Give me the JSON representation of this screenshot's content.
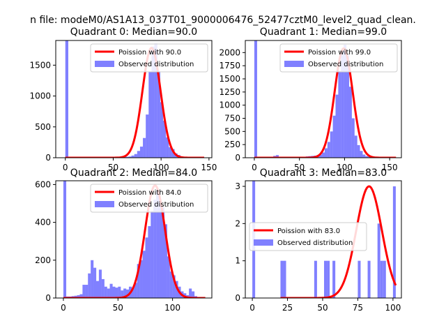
{
  "suptitle": "n file: modeM0/AS1A13_037T01_9000006476_52477cztM0_level2_quad_clean.",
  "colors": {
    "observed": "#8080ff",
    "poisson": "#ff0000",
    "axes": "#000000",
    "background": "#ffffff"
  },
  "chart_data": [
    {
      "type": "bar",
      "title": "Quadrant 0: Median=90.0",
      "legend": {
        "placement": "top-right",
        "poisson_label": "Poission with 90.0",
        "observed_label": "Observed distribution"
      },
      "xlim": [
        -10,
        153
      ],
      "ylim": [
        0,
        1900
      ],
      "xticks": [
        0,
        50,
        100,
        150
      ],
      "yticks": [
        0,
        500,
        1000,
        1500
      ],
      "bin_width": 3.1,
      "hist": [
        [
          0,
          1900
        ],
        [
          21,
          5
        ],
        [
          24,
          5
        ],
        [
          39,
          6
        ],
        [
          42,
          3
        ],
        [
          51,
          8
        ],
        [
          57,
          10
        ],
        [
          60,
          10
        ],
        [
          63,
          15
        ],
        [
          66,
          20
        ],
        [
          69,
          35
        ],
        [
          72,
          60
        ],
        [
          75,
          110
        ],
        [
          78,
          180
        ],
        [
          81,
          320
        ],
        [
          84,
          700
        ],
        [
          87,
          1400
        ],
        [
          90,
          1800
        ],
        [
          93,
          1850
        ],
        [
          96,
          1400
        ],
        [
          99,
          900
        ],
        [
          102,
          600
        ],
        [
          105,
          330
        ],
        [
          108,
          170
        ],
        [
          111,
          140
        ],
        [
          114,
          70
        ],
        [
          117,
          45
        ],
        [
          120,
          20
        ],
        [
          123,
          10
        ],
        [
          126,
          6
        ],
        [
          129,
          3
        ],
        [
          132,
          2
        ]
      ],
      "poisson_mean": 90.0,
      "poisson_amp": 1780,
      "poisson_x": [
        0,
        145
      ]
    },
    {
      "type": "bar",
      "title": "Quadrant 1: Median=99.0",
      "legend": {
        "placement": "top-right",
        "poisson_label": "Poission with 99.0",
        "observed_label": "Observed distribution"
      },
      "xlim": [
        -10,
        163
      ],
      "ylim": [
        0,
        2230
      ],
      "xticks": [
        0,
        50,
        100,
        150
      ],
      "yticks": [
        0,
        250,
        500,
        750,
        1000,
        1250,
        1500,
        1750,
        2000
      ],
      "bin_width": 3.1,
      "hist": [
        [
          0,
          2230
        ],
        [
          21,
          35
        ],
        [
          24,
          50
        ],
        [
          30,
          15
        ],
        [
          42,
          8
        ],
        [
          48,
          10
        ],
        [
          51,
          12
        ],
        [
          57,
          25
        ],
        [
          60,
          30
        ],
        [
          63,
          35
        ],
        [
          66,
          40
        ],
        [
          69,
          50
        ],
        [
          72,
          60
        ],
        [
          75,
          100
        ],
        [
          78,
          180
        ],
        [
          81,
          300
        ],
        [
          84,
          500
        ],
        [
          87,
          800
        ],
        [
          90,
          1200
        ],
        [
          93,
          1650
        ],
        [
          96,
          2050
        ],
        [
          99,
          2150
        ],
        [
          102,
          1950
        ],
        [
          105,
          1350
        ],
        [
          108,
          750
        ],
        [
          111,
          420
        ],
        [
          114,
          240
        ],
        [
          117,
          130
        ],
        [
          120,
          60
        ],
        [
          123,
          30
        ],
        [
          126,
          20
        ],
        [
          129,
          12
        ],
        [
          132,
          8
        ],
        [
          141,
          5
        ],
        [
          147,
          3
        ],
        [
          153,
          2
        ]
      ],
      "poisson_mean": 99.0,
      "poisson_amp": 2080,
      "poisson_x": [
        0,
        157
      ]
    },
    {
      "type": "bar",
      "title": "Quadrant 2: Median=84.0",
      "legend": {
        "placement": "top-right",
        "poisson_label": "Poission with 84.0",
        "observed_label": "Observed distribution"
      },
      "xlim": [
        -7,
        136
      ],
      "ylim": [
        0,
        620
      ],
      "xticks": [
        0,
        50,
        100
      ],
      "yticks": [
        0,
        200,
        400,
        600
      ],
      "bin_width": 2.6,
      "hist": [
        [
          0,
          620
        ],
        [
          2.5,
          8
        ],
        [
          5,
          8
        ],
        [
          7.5,
          10
        ],
        [
          10,
          12
        ],
        [
          12.5,
          15
        ],
        [
          15,
          20
        ],
        [
          17.5,
          70
        ],
        [
          20,
          70
        ],
        [
          22.5,
          130
        ],
        [
          25,
          200
        ],
        [
          27.5,
          160
        ],
        [
          30,
          90
        ],
        [
          32.5,
          150
        ],
        [
          35,
          100
        ],
        [
          37.5,
          60
        ],
        [
          40,
          50
        ],
        [
          42.5,
          75
        ],
        [
          45,
          60
        ],
        [
          47.5,
          55
        ],
        [
          50,
          60
        ],
        [
          52.5,
          40
        ],
        [
          55,
          50
        ],
        [
          57.5,
          45
        ],
        [
          60,
          60
        ],
        [
          62.5,
          55
        ],
        [
          65,
          80
        ],
        [
          67.5,
          180
        ],
        [
          70,
          200
        ],
        [
          72.5,
          250
        ],
        [
          75,
          320
        ],
        [
          77.5,
          380
        ],
        [
          80,
          460
        ],
        [
          82.5,
          520
        ],
        [
          85,
          570
        ],
        [
          87.5,
          510
        ],
        [
          90,
          480
        ],
        [
          92.5,
          390
        ],
        [
          95,
          220
        ],
        [
          97.5,
          140
        ],
        [
          100,
          120
        ],
        [
          102.5,
          90
        ],
        [
          105,
          60
        ],
        [
          107.5,
          35
        ],
        [
          110,
          25
        ],
        [
          112.5,
          15
        ],
        [
          115,
          50
        ],
        [
          117.5,
          35
        ],
        [
          120,
          10
        ],
        [
          122.5,
          5
        ],
        [
          125,
          3
        ]
      ],
      "poisson_mean": 84.0,
      "poisson_amp": 595,
      "poisson_x": [
        0,
        130
      ]
    },
    {
      "type": "bar",
      "title": "Quadrant 3: Median=83.0",
      "legend": {
        "placement": "center-left",
        "poisson_label": "Poission with 83.0",
        "observed_label": "Observed distribution"
      },
      "xlim": [
        -5,
        106
      ],
      "ylim": [
        0,
        3.15
      ],
      "xticks": [
        0,
        25,
        50,
        75,
        100
      ],
      "yticks": [
        0,
        1,
        2,
        3
      ],
      "bin_width": 2.0,
      "hist": [
        [
          0,
          3.15
        ],
        [
          20,
          1
        ],
        [
          22,
          1
        ],
        [
          44,
          1
        ],
        [
          51,
          1
        ],
        [
          53,
          1
        ],
        [
          57,
          1
        ],
        [
          75,
          1
        ],
        [
          82,
          1
        ],
        [
          89,
          2
        ],
        [
          91,
          1
        ],
        [
          93,
          1
        ],
        [
          100,
          3
        ]
      ],
      "poisson_mean": 83.0,
      "poisson_amp": 3.0,
      "poisson_x": [
        20,
        102
      ]
    }
  ]
}
